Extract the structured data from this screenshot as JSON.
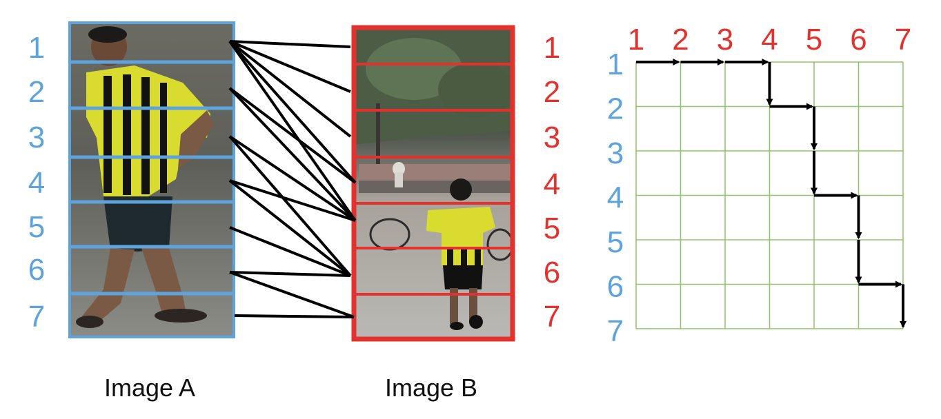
{
  "colors": {
    "image_a_color": "#5ea3dc",
    "image_b_color": "#e3312d",
    "grid_color": "#8fc46a",
    "link_color": "#000000",
    "path_color": "#000000"
  },
  "image_a": {
    "caption": "Image A",
    "stripe_labels": [
      "1",
      "2",
      "3",
      "4",
      "5",
      "6",
      "7"
    ]
  },
  "image_b": {
    "caption": "Image B",
    "stripe_labels": [
      "1",
      "2",
      "3",
      "4",
      "5",
      "6",
      "7"
    ]
  },
  "matches": [
    [
      1,
      1
    ],
    [
      1,
      2
    ],
    [
      1,
      3
    ],
    [
      1,
      4
    ],
    [
      1,
      5
    ],
    [
      2,
      4
    ],
    [
      2,
      5
    ],
    [
      3,
      5
    ],
    [
      3,
      6
    ],
    [
      4,
      5
    ],
    [
      4,
      6
    ],
    [
      5,
      6
    ],
    [
      6,
      6
    ],
    [
      6,
      7
    ],
    [
      7,
      7
    ]
  ],
  "alignment_grid": {
    "column_labels": [
      "1",
      "2",
      "3",
      "4",
      "5",
      "6",
      "7"
    ],
    "row_labels": [
      "1",
      "2",
      "3",
      "4",
      "5",
      "6",
      "7"
    ],
    "path": [
      [
        1,
        1
      ],
      [
        1,
        2
      ],
      [
        1,
        3
      ],
      [
        1,
        4
      ],
      [
        2,
        4
      ],
      [
        2,
        5
      ],
      [
        3,
        5
      ],
      [
        4,
        5
      ],
      [
        4,
        6
      ],
      [
        5,
        6
      ],
      [
        6,
        6
      ],
      [
        6,
        7
      ],
      [
        7,
        7
      ]
    ]
  }
}
